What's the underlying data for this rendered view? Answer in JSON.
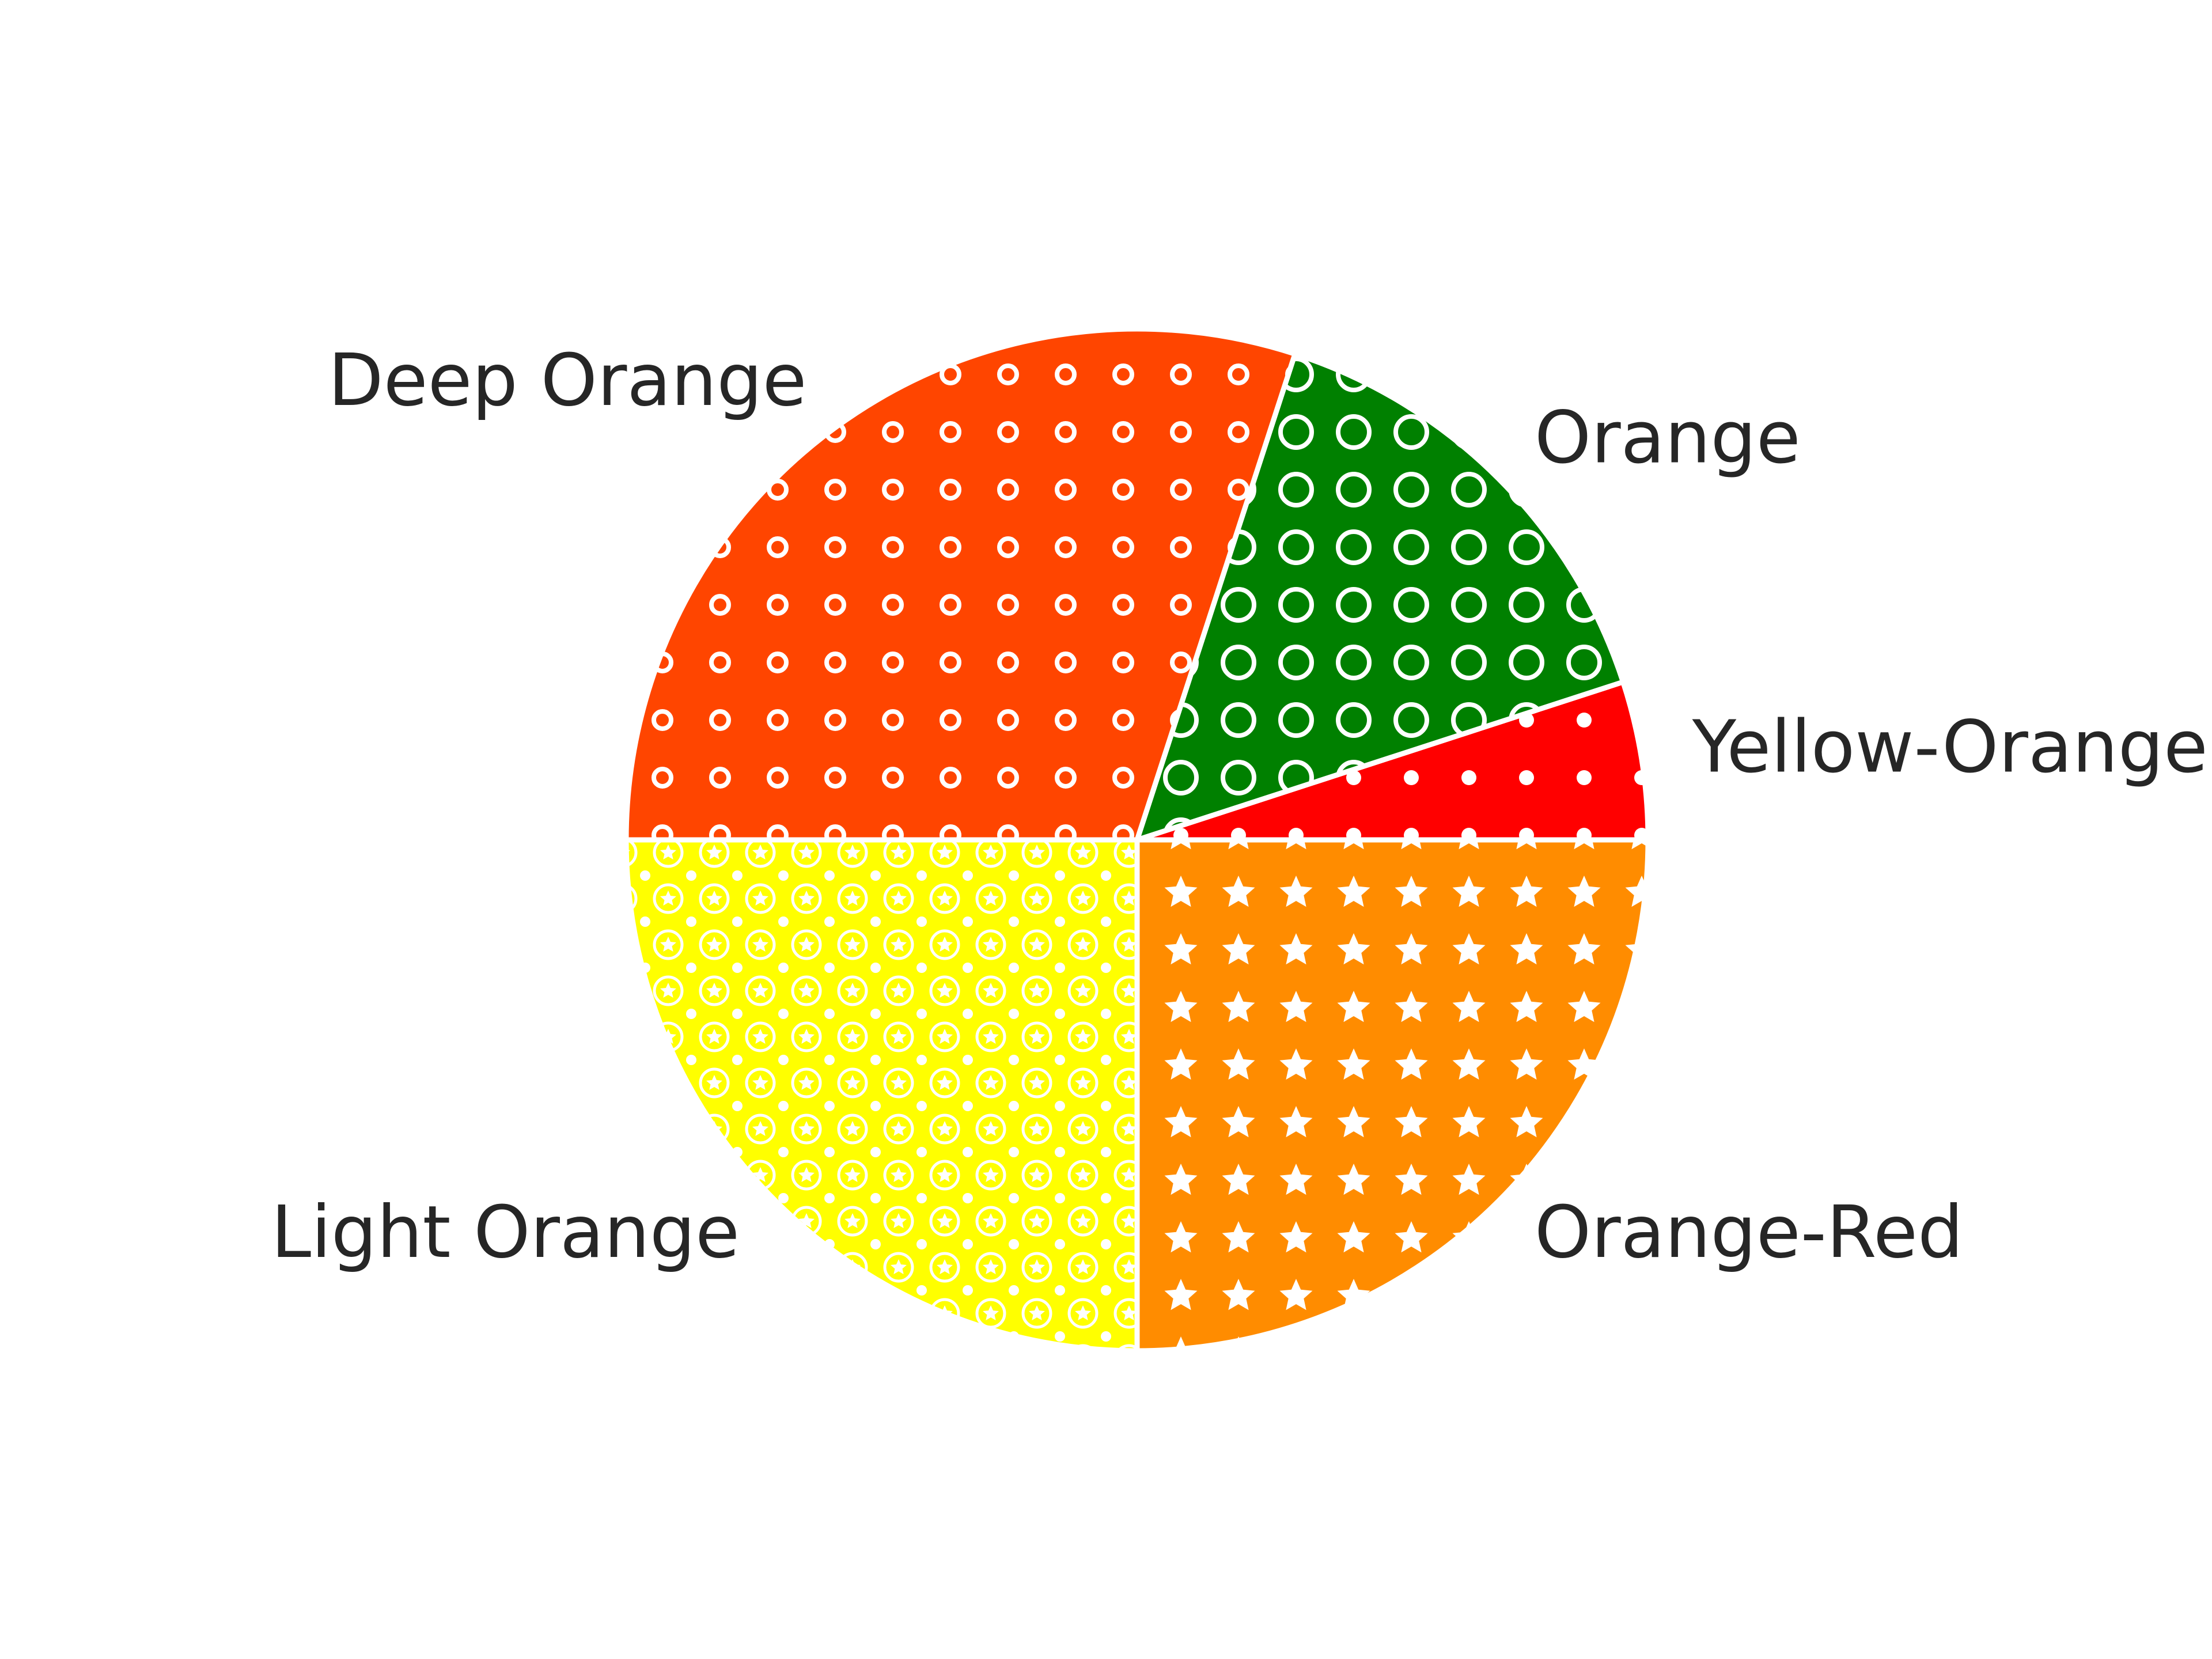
{
  "chart_data": {
    "type": "pie",
    "labels": [
      "Yellow-Orange",
      "Orange",
      "Deep Orange",
      "Light Orange",
      "Orange-Red"
    ],
    "values": [
      5,
      15,
      30,
      25,
      25
    ],
    "colors": [
      "#ff0000",
      "#008000",
      "#ff4500",
      "#ffff00",
      "#ff8c00"
    ],
    "patterns": [
      "small-dots",
      "large-circles",
      "small-circles",
      "stars-and-circles",
      "stars"
    ],
    "start_angle_deg": 0,
    "direction": "counterclockwise",
    "edge_color": "#ffffff",
    "title": "",
    "legend": "none"
  }
}
